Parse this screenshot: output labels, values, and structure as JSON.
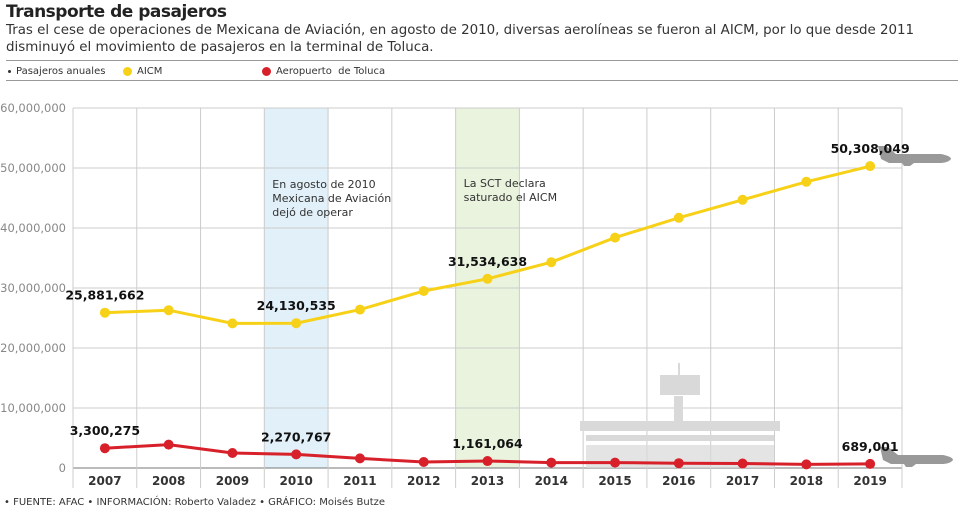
{
  "header": {
    "title": "Transporte de pasajeros",
    "subtitle": "Tras el cese de operaciones de Mexicana de Aviación, en agosto de 2010, diversas aerolíneas se fueron al AICM, por lo que desde 2011 disminuyó el movimiento de pasajeros en la terminal de Toluca."
  },
  "legend": {
    "label": "Pasajeros anuales",
    "items": [
      {
        "name": "AICM",
        "color": "#f7d117"
      },
      {
        "name": "Aeropuerto  de Toluca",
        "color": "#d7202a"
      }
    ]
  },
  "footer": "• FUENTE: AFAC • INFORMACIÓN: Roberto Valadez • GRÁFICO: Moisés Butze",
  "chart_data": {
    "type": "line",
    "categories": [
      "2007",
      "2008",
      "2009",
      "2010",
      "2011",
      "2012",
      "2013",
      "2014",
      "2015",
      "2016",
      "2017",
      "2018",
      "2019"
    ],
    "ylim": [
      0,
      60000000
    ],
    "yticks": [
      "0",
      "10,000,000",
      "20,000,000",
      "30,000,000",
      "40,000,000",
      "50,000,000",
      "60,000,000"
    ],
    "grid": true,
    "legend_position": "top",
    "series": [
      {
        "name": "AICM",
        "color": "#f7d117",
        "values": [
          25881662,
          26300000,
          24100000,
          24130535,
          26400000,
          29500000,
          31534638,
          34300000,
          38400000,
          41700000,
          44700000,
          47700000,
          50308049
        ],
        "labels": {
          "0": "25,881,662",
          "3": "24,130,535",
          "6": "31,534,638",
          "12": "50,308,049"
        }
      },
      {
        "name": "Aeropuerto  de Toluca",
        "color": "#d7202a",
        "values": [
          3300275,
          3900000,
          2500000,
          2270767,
          1600000,
          1000000,
          1161064,
          900000,
          900000,
          800000,
          750000,
          600000,
          689001
        ],
        "labels": {
          "0": "3,300,275",
          "3": "2,270,767",
          "6": "1,161,064",
          "12": "689,001"
        }
      }
    ],
    "annotations": [
      {
        "index": 3,
        "color": "#e1f0f9",
        "text": [
          "En agosto de 2010",
          "Mexicana de Aviación",
          "dejó de operar"
        ]
      },
      {
        "index": 6,
        "color": "#eaf3de",
        "text": [
          "La SCT declara",
          "saturado el AICM"
        ]
      }
    ]
  }
}
